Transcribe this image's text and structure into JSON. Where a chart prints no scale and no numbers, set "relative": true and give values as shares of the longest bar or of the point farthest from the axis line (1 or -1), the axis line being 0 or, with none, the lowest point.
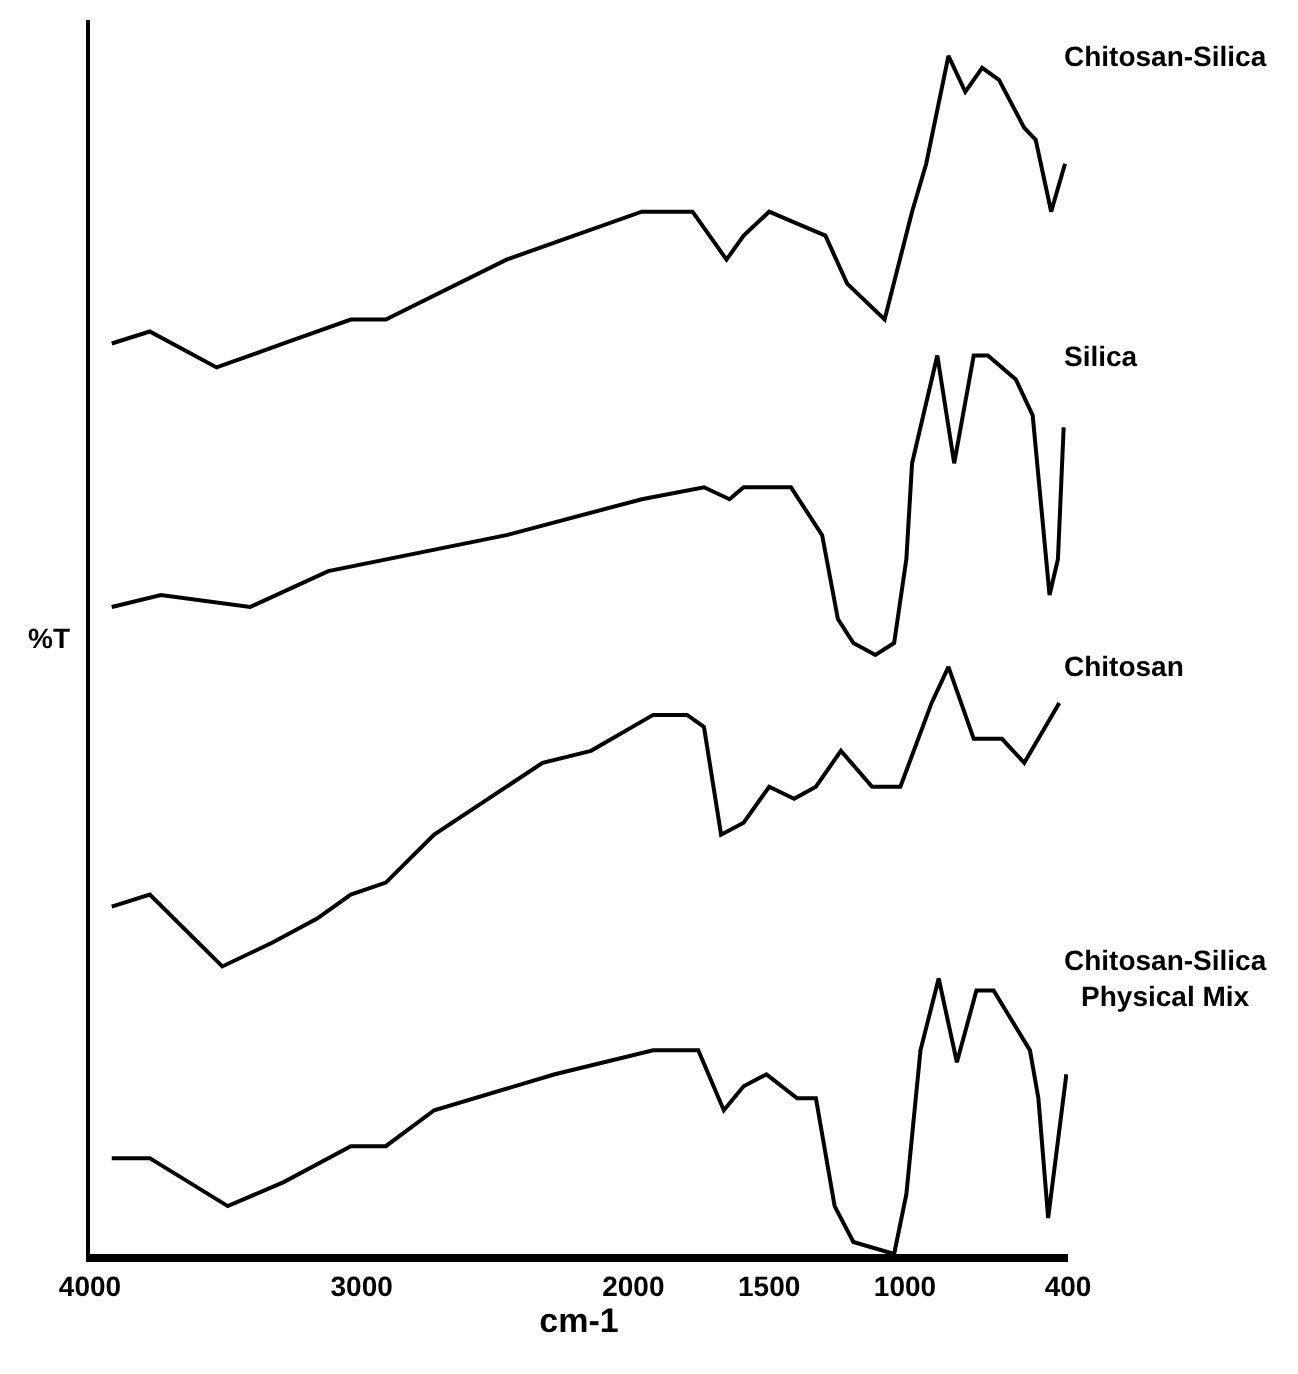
{
  "chart_data": {
    "type": "line",
    "relative": true,
    "xlabel": "cm-1",
    "ylabel": "%T",
    "xlim": [
      4000,
      400
    ],
    "xticks": [
      4000,
      3000,
      2000,
      1500,
      1000,
      400
    ],
    "legend": false,
    "marker": "none",
    "line_style": "solid",
    "series": [
      {
        "name": "Chitosan-Silica",
        "color": "#000000",
        "x": [
          3920,
          3780,
          3534,
          3287,
          3040,
          2911,
          2467,
          1969,
          1782,
          1657,
          1594,
          1500,
          1397,
          1293,
          1213,
          1075,
          974,
          922,
          840,
          778,
          716,
          654,
          561,
          519,
          462,
          411
        ],
        "values": [
          0.76,
          0.77,
          0.74,
          0.76,
          0.78,
          0.78,
          0.83,
          0.87,
          0.87,
          0.83,
          0.85,
          0.87,
          0.86,
          0.85,
          0.81,
          0.78,
          0.87,
          0.91,
          1.0,
          0.97,
          0.99,
          0.98,
          0.94,
          0.93,
          0.87,
          0.91
        ]
      },
      {
        "name": "Silica",
        "color": "#000000",
        "x": [
          3920,
          3739,
          3411,
          3123,
          2467,
          1969,
          1740,
          1646,
          1594,
          1420,
          1305,
          1247,
          1190,
          1109,
          1040,
          995,
          974,
          881,
          819,
          747,
          695,
          592,
          530,
          468,
          437,
          416
        ],
        "values": [
          0.54,
          0.55,
          0.54,
          0.57,
          0.6,
          0.63,
          0.64,
          0.63,
          0.64,
          0.64,
          0.6,
          0.53,
          0.51,
          0.5,
          0.51,
          0.58,
          0.66,
          0.75,
          0.66,
          0.75,
          0.75,
          0.73,
          0.7,
          0.55,
          0.58,
          0.69
        ]
      },
      {
        "name": "Chitosan",
        "color": "#000000",
        "x": [
          3920,
          3780,
          3513,
          3328,
          3164,
          3040,
          2911,
          2733,
          2334,
          2156,
          1927,
          1802,
          1740,
          1677,
          1594,
          1500,
          1408,
          1328,
          1236,
          1121,
          1017,
          902,
          840,
          747,
          643,
          561,
          432
        ],
        "values": [
          0.29,
          0.3,
          0.24,
          0.26,
          0.28,
          0.3,
          0.31,
          0.35,
          0.41,
          0.42,
          0.45,
          0.45,
          0.44,
          0.35,
          0.36,
          0.39,
          0.38,
          0.39,
          0.42,
          0.39,
          0.39,
          0.46,
          0.49,
          0.43,
          0.43,
          0.41,
          0.46
        ]
      },
      {
        "name": "Chitosan-Silica\nPhysical Mix",
        "color": "#000000",
        "x": [
          3920,
          3780,
          3493,
          3287,
          3040,
          2911,
          2733,
          2289,
          1927,
          1761,
          1667,
          1594,
          1510,
          1397,
          1328,
          1259,
          1190,
          1040,
          995,
          943,
          876,
          809,
          737,
          674,
          540,
          509,
          473,
          406
        ],
        "values": [
          0.08,
          0.08,
          0.04,
          0.06,
          0.09,
          0.09,
          0.12,
          0.15,
          0.17,
          0.17,
          0.12,
          0.14,
          0.15,
          0.13,
          0.13,
          0.04,
          0.01,
          0.0,
          0.05,
          0.17,
          0.23,
          0.16,
          0.22,
          0.22,
          0.17,
          0.13,
          0.03,
          0.15
        ]
      }
    ]
  }
}
